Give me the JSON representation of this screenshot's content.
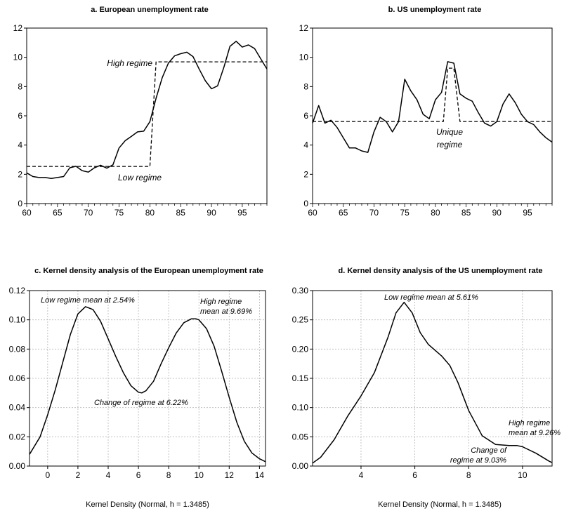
{
  "chart_data": [
    {
      "type": "line",
      "title": "a. European unemployment rate",
      "xlim": [
        60,
        99
      ],
      "ylim": [
        0,
        12
      ],
      "xticks": [
        60,
        65,
        70,
        75,
        80,
        85,
        90,
        95
      ],
      "yticks": [
        0,
        2,
        4,
        6,
        8,
        10,
        12
      ],
      "grid": false,
      "series": [
        {
          "style": "solid",
          "x": [
            60,
            61,
            62,
            63,
            64,
            65,
            66,
            67,
            68,
            69,
            70,
            71,
            72,
            73,
            74,
            75,
            76,
            77,
            78,
            79,
            80,
            81,
            82,
            83,
            84,
            85,
            86,
            87,
            88,
            89,
            90,
            91,
            92,
            93,
            94,
            95,
            96,
            97,
            98,
            99
          ],
          "y": [
            2.1,
            1.85,
            1.78,
            1.78,
            1.72,
            1.78,
            1.85,
            2.45,
            2.55,
            2.25,
            2.15,
            2.45,
            2.62,
            2.42,
            2.65,
            3.8,
            4.3,
            4.6,
            4.9,
            4.95,
            5.6,
            7.2,
            8.6,
            9.6,
            10.1,
            10.25,
            10.35,
            10.05,
            9.2,
            8.4,
            7.85,
            8.05,
            9.3,
            10.75,
            11.1,
            10.7,
            10.85,
            10.6,
            9.9,
            9.2
          ]
        },
        {
          "style": "dashed",
          "x": [
            60,
            80,
            81,
            99
          ],
          "y": [
            2.54,
            2.54,
            9.69,
            9.69
          ]
        }
      ],
      "annotations": [
        "High regime",
        "Low regime"
      ]
    },
    {
      "type": "line",
      "title": "b. US unemployment rate",
      "xlim": [
        60,
        99
      ],
      "ylim": [
        0,
        12
      ],
      "xticks": [
        60,
        65,
        70,
        75,
        80,
        85,
        90,
        95
      ],
      "yticks": [
        0,
        2,
        4,
        6,
        8,
        10,
        12
      ],
      "grid": false,
      "series": [
        {
          "style": "solid",
          "x": [
            60,
            61,
            62,
            63,
            64,
            65,
            66,
            67,
            68,
            69,
            70,
            71,
            72,
            73,
            74,
            75,
            76,
            77,
            78,
            79,
            80,
            81,
            82,
            83,
            84,
            85,
            86,
            87,
            88,
            89,
            90,
            91,
            92,
            93,
            94,
            95,
            96,
            97,
            98,
            99
          ],
          "y": [
            5.5,
            6.7,
            5.5,
            5.7,
            5.2,
            4.5,
            3.8,
            3.8,
            3.6,
            3.5,
            4.9,
            5.9,
            5.6,
            4.9,
            5.6,
            8.5,
            7.7,
            7.1,
            6.1,
            5.8,
            7.1,
            7.6,
            9.7,
            9.6,
            7.5,
            7.2,
            7.0,
            6.2,
            5.5,
            5.3,
            5.6,
            6.8,
            7.5,
            6.9,
            6.1,
            5.6,
            5.4,
            4.9,
            4.5,
            4.2
          ]
        },
        {
          "style": "dashed",
          "x": [
            60,
            81.3,
            82,
            83,
            84,
            99
          ],
          "y": [
            5.61,
            5.61,
            9.26,
            9.26,
            5.61,
            5.61
          ]
        }
      ],
      "annotations": [
        "Unique",
        "regime"
      ]
    },
    {
      "type": "line",
      "title": "c. Kernel density analysis of the European unemployment rate",
      "xlabel": "Kernel Density (Normal, h = 1.3485)",
      "xlim": [
        -1.2,
        14.4
      ],
      "ylim": [
        0,
        0.12
      ],
      "xticks": [
        0,
        2,
        4,
        6,
        8,
        10,
        12,
        14
      ],
      "yticks": [
        0.0,
        0.02,
        0.04,
        0.06,
        0.08,
        0.1,
        0.12
      ],
      "grid": true,
      "series": [
        {
          "style": "solid",
          "x": [
            -1.2,
            -0.5,
            0,
            0.5,
            1,
            1.5,
            2,
            2.5,
            3,
            3.5,
            4,
            4.5,
            5,
            5.5,
            6,
            6.22,
            6.5,
            7,
            7.5,
            8,
            8.5,
            9,
            9.5,
            9.8,
            10,
            10.5,
            11,
            11.5,
            12,
            12.5,
            13,
            13.5,
            14,
            14.4
          ],
          "y": [
            0.008,
            0.02,
            0.035,
            0.052,
            0.071,
            0.09,
            0.104,
            0.109,
            0.107,
            0.099,
            0.087,
            0.075,
            0.064,
            0.055,
            0.0505,
            0.05,
            0.0515,
            0.058,
            0.07,
            0.081,
            0.091,
            0.098,
            0.1007,
            0.1007,
            0.1,
            0.094,
            0.082,
            0.065,
            0.047,
            0.03,
            0.017,
            0.009,
            0.005,
            0.003
          ]
        }
      ],
      "annotations": [
        "Low regime mean at 2.54%",
        "High regime",
        "mean at 9.69%",
        "Change of regime at 6.22%"
      ]
    },
    {
      "type": "line",
      "title": "d. Kernel density analysis of the US unemployment rate",
      "xlabel": "Kernel Density (Normal, h = 1.3485)",
      "xlim": [
        2.2,
        11.1
      ],
      "ylim": [
        0,
        0.3
      ],
      "xticks": [
        4,
        6,
        8,
        10
      ],
      "yticks": [
        0.0,
        0.05,
        0.1,
        0.15,
        0.2,
        0.25,
        0.3
      ],
      "grid": true,
      "series": [
        {
          "style": "solid",
          "x": [
            2.2,
            2.5,
            3,
            3.5,
            4,
            4.5,
            5,
            5.3,
            5.6,
            5.9,
            6.2,
            6.5,
            7,
            7.3,
            7.6,
            8,
            8.5,
            9,
            9.5,
            9.8,
            10,
            10.5,
            11,
            11.1
          ],
          "y": [
            0.005,
            0.015,
            0.045,
            0.085,
            0.12,
            0.16,
            0.22,
            0.262,
            0.28,
            0.262,
            0.228,
            0.208,
            0.188,
            0.172,
            0.143,
            0.095,
            0.052,
            0.037,
            0.035,
            0.035,
            0.033,
            0.022,
            0.008,
            0.006
          ]
        }
      ],
      "annotations": [
        "Low regime mean at 5.61%",
        "High regime",
        "mean at 9.26%",
        "Change of",
        "regime at 9.03%"
      ]
    }
  ]
}
